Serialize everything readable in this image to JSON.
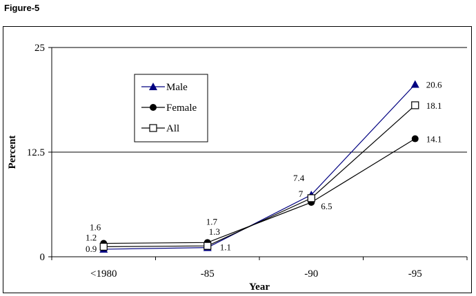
{
  "figure_label": "Figure-5",
  "chart_data": {
    "type": "line",
    "title": "",
    "xlabel": "Year",
    "ylabel": "Percent",
    "categories": [
      "<1980",
      "-85",
      "-90",
      "-95"
    ],
    "ylim": [
      0,
      25
    ],
    "yticks": [
      "0",
      "12.5",
      "25"
    ],
    "grid": "horizontal",
    "legend_position": "top-left inside",
    "series": [
      {
        "name": "Male",
        "values": [
          0.9,
          1.1,
          7.4,
          20.6
        ],
        "labels": [
          "0.9",
          "1.1",
          "7.4",
          "20.6"
        ],
        "color": "#000080",
        "marker": "triangle"
      },
      {
        "name": "Female",
        "values": [
          1.6,
          1.7,
          6.5,
          14.1
        ],
        "labels": [
          "1.6",
          "1.7",
          "6.5",
          "14.1"
        ],
        "color": "#000000",
        "marker": "circle"
      },
      {
        "name": "All",
        "values": [
          1.2,
          1.3,
          7,
          18.1
        ],
        "labels": [
          "1.2",
          "1.3",
          "7",
          "18.1"
        ],
        "color": "#000000",
        "marker": "square"
      }
    ]
  }
}
